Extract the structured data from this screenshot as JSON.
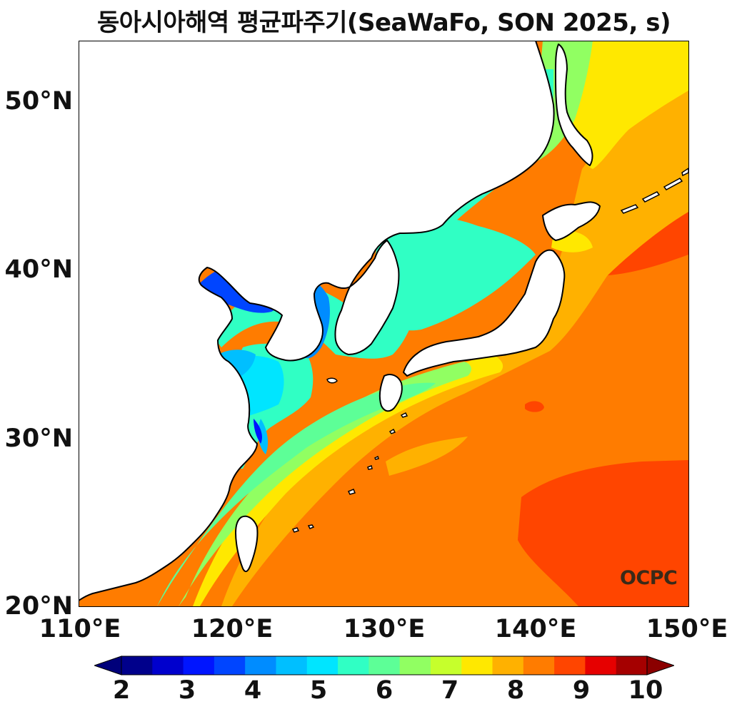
{
  "title": "동아시아해역 평균파주기(SeaWaFo, SON 2025, s)",
  "axes": {
    "lat_labels": [
      "50°N",
      "40°N",
      "30°N",
      "20°N"
    ],
    "lon_labels": [
      "110°E",
      "120°E",
      "130°E",
      "140°E",
      "150°E"
    ],
    "lat_range": [
      20,
      53.5
    ],
    "lon_range": [
      110,
      150
    ]
  },
  "watermark": "OCPC",
  "colorbar": {
    "tick_labels": [
      "2",
      "3",
      "4",
      "5",
      "6",
      "7",
      "8",
      "9",
      "10"
    ],
    "range": [
      2,
      10
    ],
    "extend": "both",
    "colors": [
      "#00008b",
      "#0000cd",
      "#0015ff",
      "#0045ff",
      "#008cff",
      "#00bfff",
      "#00e5ff",
      "#30ffc4",
      "#5dff97",
      "#91ff62",
      "#c6ff2c",
      "#ffe800",
      "#ffb100",
      "#ff7c00",
      "#ff4500",
      "#e60000",
      "#a50000"
    ],
    "under_color": "#00007a",
    "over_color": "#8b0000"
  },
  "map": {
    "variable": "mean wave period",
    "units": "s",
    "season": "SON 2025",
    "model": "SeaWaFo"
  }
}
